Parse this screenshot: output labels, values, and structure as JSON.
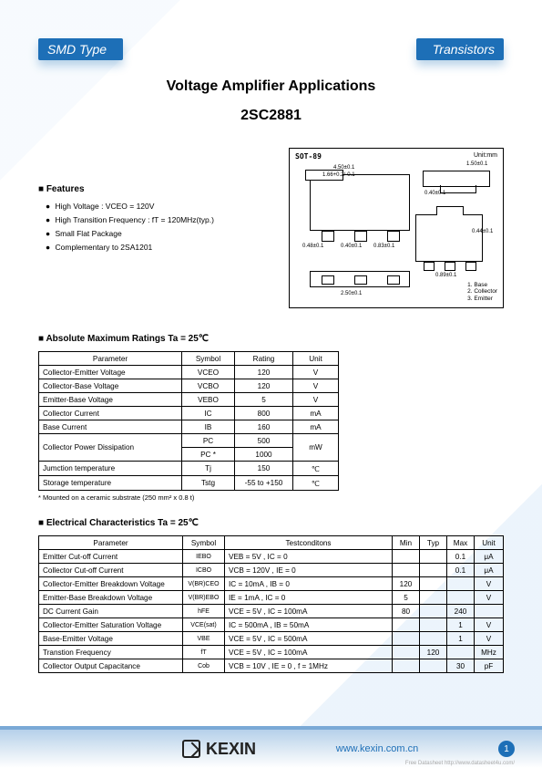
{
  "header": {
    "left": "SMD Type",
    "right": "Transistors"
  },
  "title": {
    "line1": "Voltage Amplifier Applications",
    "line2": "2SC2881"
  },
  "features": {
    "heading": "Features",
    "items": [
      "High Voltage : VCEO = 120V",
      "High Transition Frequency : fT = 120MHz(typ.)",
      "Small Flat Package",
      "Complementary to 2SA1201"
    ]
  },
  "diagram": {
    "title": "SOT-89",
    "unit_label": "Unit:mm",
    "dims": {
      "w_top": "4.50±0.1",
      "tab_w": "1.66+0.2/-0.1",
      "side_h": "1.50±0.1",
      "pin_l": "0.40±0.1",
      "pin_gap1": "0.48±0.1",
      "pin_gap2": "0.83±0.1",
      "pin_w": "0.44±0.1",
      "gap_bot": "0.89±0.1",
      "strip": "2.50±0.1",
      "side_v": "0.40±0.1"
    },
    "legend": [
      "1. Base",
      "2. Collector",
      "3. Emitter"
    ]
  },
  "ratings": {
    "heading": "Absolute Maximum Ratings Ta = 25℃",
    "columns": [
      "Parameter",
      "Symbol",
      "Rating",
      "Unit"
    ],
    "rows": [
      [
        "Collector-Emitter Voltage",
        "VCEO",
        "120",
        "V"
      ],
      [
        "Collector-Base Voltage",
        "VCBO",
        "120",
        "V"
      ],
      [
        "Emitter-Base Voltage",
        "VEBO",
        "5",
        "V"
      ],
      [
        "Collector Current",
        "IC",
        "800",
        "mA"
      ],
      [
        "Base Current",
        "IB",
        "160",
        "mA"
      ]
    ],
    "pd_row": {
      "param": "Collector Power Dissipation",
      "s1": "PC",
      "r1": "500",
      "s2": "PC *",
      "r2": "1000",
      "unit": "mW"
    },
    "tail": [
      [
        "Jumction temperature",
        "Tj",
        "150",
        "℃"
      ],
      [
        "Storage temperature",
        "Tstg",
        "-55 to +150",
        "℃"
      ]
    ],
    "note": "* Mounted on a ceramic substrate (250 mm² x 0.8 t)"
  },
  "echar": {
    "heading": "Electrical Characteristics Ta = 25℃",
    "columns": [
      "Parameter",
      "Symbol",
      "Testconditons",
      "Min",
      "Typ",
      "Max",
      "Unit"
    ],
    "rows": [
      [
        "Emitter Cut-off Current",
        "IEBO",
        "VEB = 5V , IC = 0",
        "",
        "",
        "0.1",
        "μA"
      ],
      [
        "Collector Cut-off Current",
        "ICBO",
        "VCB = 120V , IE = 0",
        "",
        "",
        "0.1",
        "μA"
      ],
      [
        "Collector-Emitter Breakdown Voltage",
        "V(BR)CEO",
        "IC = 10mA , IB = 0",
        "120",
        "",
        "",
        "V"
      ],
      [
        "Emitter-Base Breakdown Voltage",
        "V(BR)EBO",
        "IE = 1mA , IC = 0",
        "5",
        "",
        "",
        "V"
      ],
      [
        "DC Current Gain",
        "hFE",
        "VCE = 5V , IC = 100mA",
        "80",
        "",
        "240",
        ""
      ],
      [
        "Collector-Emitter Saturation Voltage",
        "VCE(sat)",
        "IC = 500mA , IB = 50mA",
        "",
        "",
        "1",
        "V"
      ],
      [
        "Base-Emitter Voltage",
        "VBE",
        "VCE = 5V , IC = 500mA",
        "",
        "",
        "1",
        "V"
      ],
      [
        "Transtion Frequency",
        "fT",
        "VCE = 5V , IC = 100mA",
        "",
        "120",
        "",
        "MHz"
      ],
      [
        "Collector Output Capacitance",
        "Cob",
        "VCB = 10V , IE = 0 , f = 1MHz",
        "",
        "",
        "30",
        "pF"
      ]
    ]
  },
  "footer": {
    "brand": "KEXIN",
    "url": "www.kexin.com.cn",
    "page": "1",
    "tiny": "Free Datasheet http://www.datasheet4u.com/"
  },
  "colors": {
    "brand": "#1d6fb7",
    "bar": "#7aa9d6"
  }
}
